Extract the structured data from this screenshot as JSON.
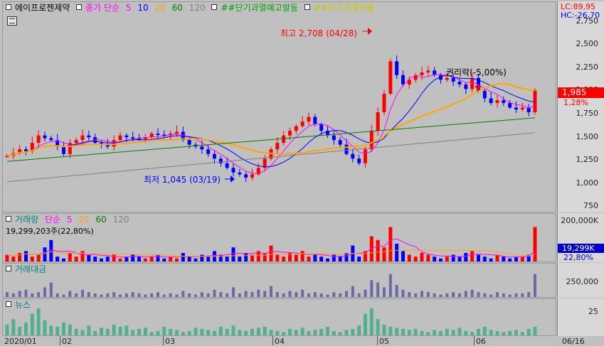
{
  "security": "에이프로젠제약",
  "price_legend": {
    "title": "종가 단순",
    "ma": [
      {
        "label": "5",
        "color": "#ff00ff"
      },
      {
        "label": "10",
        "color": "#0000ff"
      },
      {
        "label": "20",
        "color": "#ffa500"
      },
      {
        "label": "60",
        "color": "#008000"
      },
      {
        "label": "120",
        "color": "#808080"
      }
    ],
    "signal1": "##단기과열예고발동",
    "signal2": "##단기과열적출"
  },
  "colors": {
    "up": "#ff0000",
    "down": "#0000ff",
    "ma5": "#ff00ff",
    "ma10": "#0000ff",
    "ma20": "#ffa500",
    "ma60": "#008000",
    "ma120": "#808080",
    "volume": "#6a6aa8",
    "news": "#50b090"
  },
  "right_header": {
    "lc": "LC:89,95",
    "hc": "HC:-26,70"
  },
  "price_axis": {
    "ticks": [
      "2,750",
      "2,500",
      "2,250",
      "2,000",
      "1,750",
      "1,500",
      "1,250",
      "1,000",
      "750"
    ],
    "current_price": "1,985",
    "change_pct": "1,28%"
  },
  "annotations": {
    "high": "최고 2,708 (04/28)",
    "low": "최저 1,045 (03/19)",
    "rights": "권리락(-5,00%)"
  },
  "volume_legend": {
    "title": "거래량",
    "ma_label": "단순",
    "ma": [
      "5",
      "20",
      "60",
      "120"
    ],
    "value": "19,299,203주(22,80%)"
  },
  "volume_axis": {
    "top": "200,000K",
    "current": "19,299K",
    "pct": "22,80%"
  },
  "amount_legend": {
    "title": "거래대금"
  },
  "amount_axis": {
    "tick": "250,000"
  },
  "news_legend": {
    "title": "뉴스"
  },
  "news_axis": {
    "tick": "25"
  },
  "x_axis": {
    "labels": [
      "2020/01",
      "02",
      "03",
      "04",
      "05",
      "06",
      "06/16"
    ]
  },
  "chart_data": {
    "type": "candlestick",
    "ylim": [
      700,
      2800
    ],
    "x": [
      "2020/01",
      "02",
      "03",
      "04",
      "05",
      "06"
    ],
    "close_series": [
      1280,
      1310,
      1350,
      1330,
      1420,
      1500,
      1470,
      1450,
      1380,
      1300,
      1420,
      1450,
      1500,
      1480,
      1420,
      1400,
      1380,
      1450,
      1500,
      1480,
      1470,
      1460,
      1480,
      1520,
      1510,
      1500,
      1520,
      1540,
      1450,
      1400,
      1380,
      1350,
      1300,
      1250,
      1200,
      1150,
      1100,
      1080,
      1045,
      1080,
      1150,
      1250,
      1350,
      1420,
      1500,
      1550,
      1600,
      1650,
      1700,
      1620,
      1550,
      1500,
      1450,
      1400,
      1300,
      1250,
      1200,
      1350,
      1550,
      1750,
      1950,
      2300,
      2150,
      2050,
      2100,
      2150,
      2180,
      2200,
      2150,
      2100,
      2120,
      2080,
      2050,
      2000,
      2120,
      1980,
      1900,
      1850,
      1880,
      1850,
      1800,
      1780,
      1800,
      1750,
      1985
    ],
    "volume_series": [
      4,
      3,
      5,
      6,
      3,
      4,
      8,
      12,
      3,
      2,
      5,
      3,
      6,
      4,
      3,
      2,
      3,
      4,
      2,
      3,
      4,
      3,
      2,
      3,
      4,
      2,
      3,
      2,
      5,
      3,
      2,
      4,
      3,
      6,
      4,
      3,
      8,
      3,
      5,
      4,
      6,
      5,
      9,
      4,
      3,
      5,
      4,
      6,
      3,
      4,
      3,
      2,
      4,
      3,
      5,
      9,
      3,
      6,
      14,
      12,
      8,
      19,
      10,
      6,
      4,
      3,
      5,
      4,
      3,
      2,
      3,
      4,
      3,
      5,
      6,
      4,
      3,
      2,
      4,
      3,
      2,
      3,
      3,
      4,
      19
    ],
    "news_series": [
      10,
      15,
      8,
      12,
      20,
      25,
      14,
      9,
      8,
      12,
      10,
      6,
      5,
      9,
      4,
      7,
      6,
      10,
      8,
      9,
      5,
      6,
      7,
      3,
      4,
      8,
      6,
      5,
      3,
      4,
      7,
      6,
      5,
      4,
      8,
      6,
      9,
      5,
      4,
      6,
      7,
      8,
      5,
      4,
      3,
      6,
      5,
      7,
      4,
      5,
      6,
      8,
      4,
      3,
      5,
      6,
      9,
      20,
      25,
      15,
      10,
      8,
      7,
      6,
      5,
      6,
      4,
      3,
      5,
      4,
      6,
      5,
      7,
      4,
      3,
      6,
      8,
      5,
      4,
      3,
      4,
      5,
      3,
      6,
      8
    ]
  }
}
